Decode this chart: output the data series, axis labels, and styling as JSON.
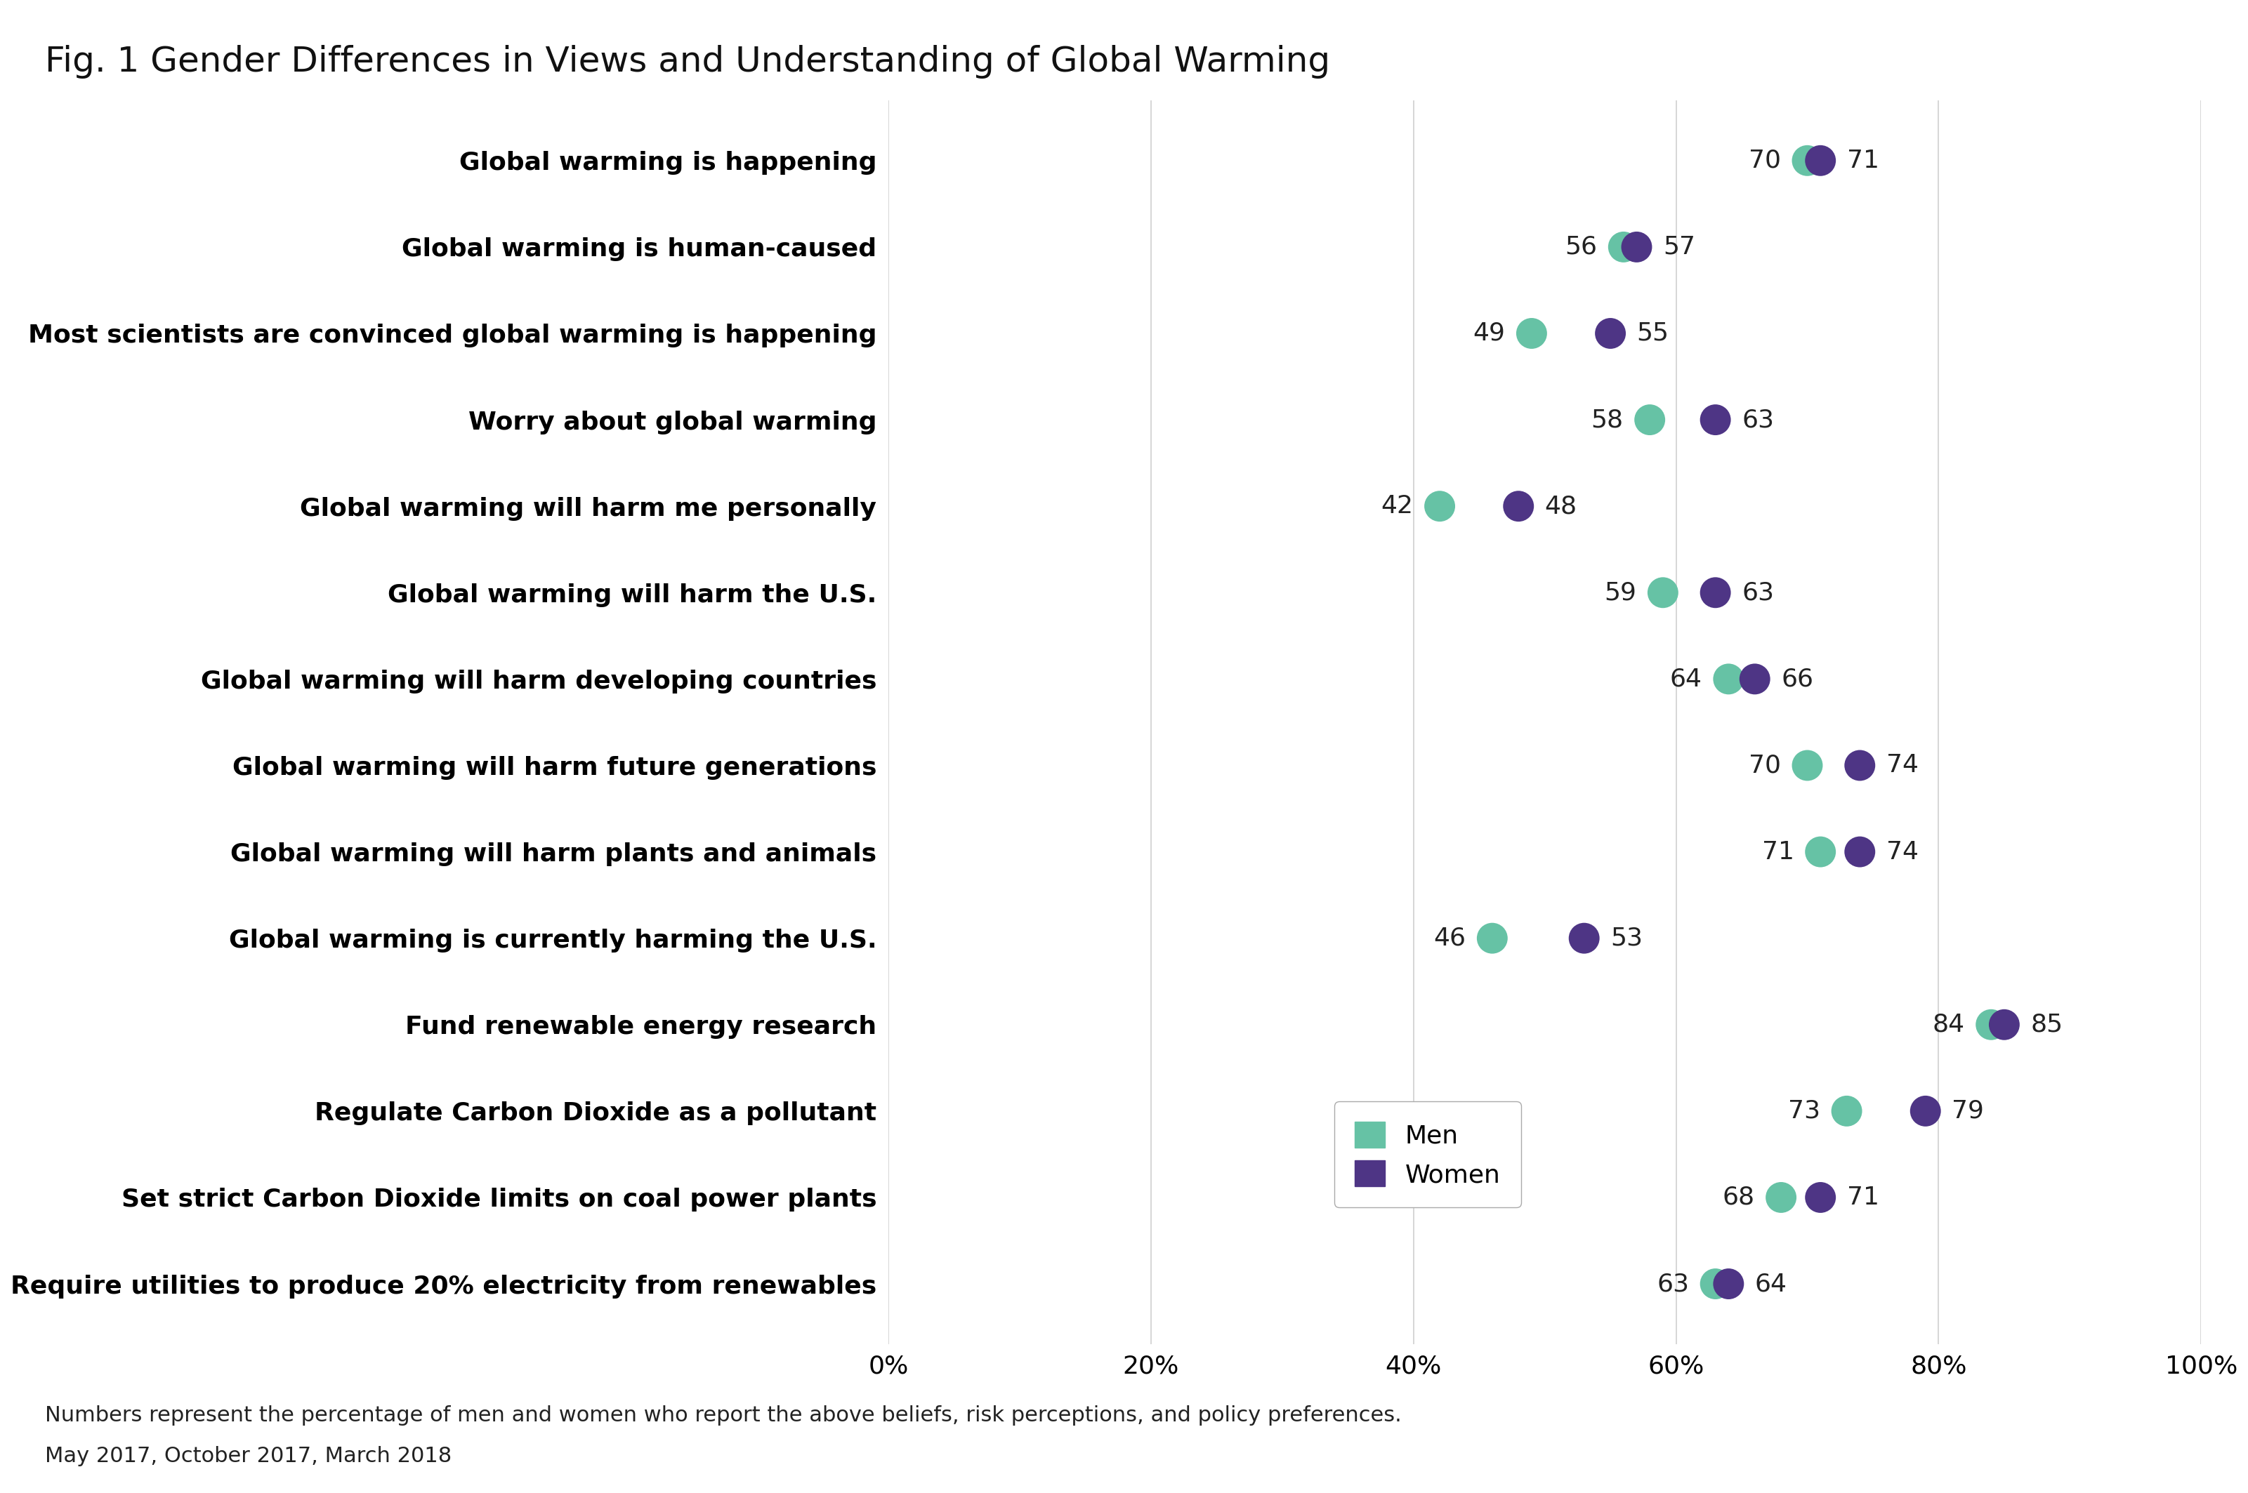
{
  "title": "Fig. 1 Gender Differences in Views and Understanding of Global Warming",
  "categories": [
    "Global warming is happening",
    "Global warming is human-caused",
    "Most scientists are convinced global warming is happening",
    "Worry about global warming",
    "Global warming will harm me personally",
    "Global warming will harm the U.S.",
    "Global warming will harm developing countries",
    "Global warming will harm future generations",
    "Global warming will harm plants and animals",
    "Global warming is currently harming the U.S.",
    "Fund renewable energy research",
    "Regulate Carbon Dioxide as a pollutant",
    "Set strict Carbon Dioxide limits on coal power plants",
    "Require utilities to produce 20% electricity from renewables"
  ],
  "men": [
    70,
    56,
    49,
    58,
    42,
    59,
    64,
    70,
    71,
    46,
    84,
    73,
    68,
    63
  ],
  "women": [
    71,
    57,
    55,
    63,
    48,
    63,
    66,
    74,
    74,
    53,
    85,
    79,
    71,
    64
  ],
  "men_color": "#66c2a5",
  "women_color": "#4e3585",
  "background_color": "#ffffff",
  "grid_color": "#d0d0d0",
  "footnote1": "Numbers represent the percentage of men and women who report the above beliefs, risk perceptions, and policy preferences.",
  "footnote2": "May 2017, October 2017, March 2018",
  "xlim": [
    0,
    100
  ],
  "xticks": [
    0,
    20,
    40,
    60,
    80,
    100
  ],
  "xtick_labels": [
    "0%",
    "20%",
    "40%",
    "60%",
    "80%",
    "100%"
  ],
  "dot_size": 1000,
  "title_fontsize": 36,
  "label_fontsize": 26,
  "tick_fontsize": 26,
  "annotation_fontsize": 26,
  "footnote_fontsize": 22,
  "legend_fontsize": 26
}
